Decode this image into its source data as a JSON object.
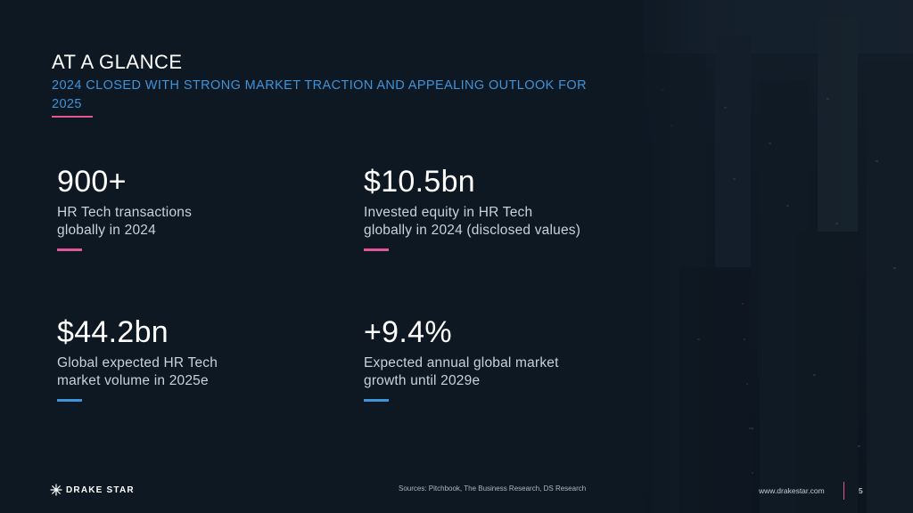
{
  "slide": {
    "title": "AT A GLANCE",
    "subtitle": "2024 CLOSED WITH STRONG MARKET TRACTION AND APPEALING OUTLOOK FOR 2025"
  },
  "stats": [
    {
      "value": "900+",
      "description": "HR Tech transactions\nglobally in 2024",
      "accent": "#e0579a"
    },
    {
      "value": "$10.5bn",
      "description": "Invested equity in HR Tech\nglobally in 2024 (disclosed values)",
      "accent": "#e0579a"
    },
    {
      "value": "$44.2bn",
      "description": "Global expected HR Tech\nmarket volume in 2025e",
      "accent": "#3e93d9"
    },
    {
      "value": "+9.4%",
      "description": "Expected annual global market\ngrowth until 2029e",
      "accent": "#3e93d9"
    }
  ],
  "footer": {
    "logo_text": "DRAKE STAR",
    "logo_icon": "star-burst-icon",
    "sources": "Sources: Pitchbook, The Business Research, DS Research",
    "website": "www.drakestar.com",
    "page_number": "5"
  },
  "colors": {
    "background": "#0d1823",
    "accent_pink": "#e0579a",
    "accent_blue": "#3e93d9"
  }
}
